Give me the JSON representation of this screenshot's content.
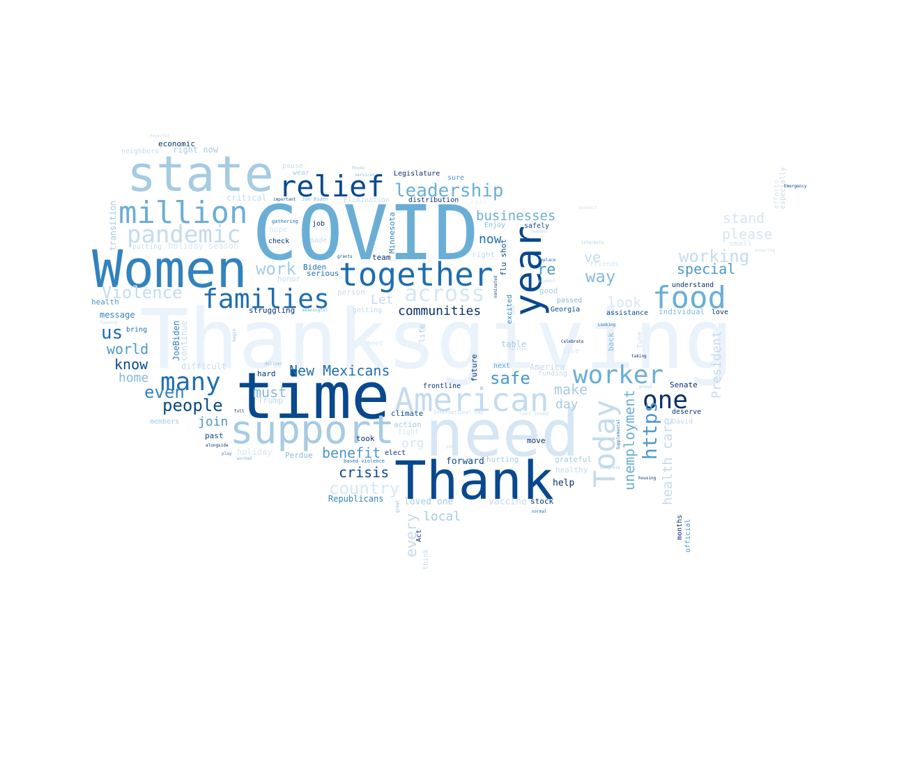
{
  "palette": {
    "c1": "#eaf2fb",
    "c2": "#d6e6f4",
    "c3": "#c4dbee",
    "c4": "#a6cbe3",
    "c5": "#86b9da",
    "c6": "#6aaed6",
    "c7": "#4a98c9",
    "c8": "#3182bd",
    "c9": "#1f6db1",
    "c10": "#0e59a2",
    "c11": "#08488e",
    "c12": "#08306b"
  },
  "words": [
    {
      "text": "Thanksgiving",
      "color": "c1"
    },
    {
      "text": "time",
      "color": "c11"
    },
    {
      "text": "need",
      "color": "c2"
    },
    {
      "text": "COVID",
      "color": "c6"
    },
    {
      "text": "Women",
      "color": "c8"
    },
    {
      "text": "Thank",
      "color": "c11"
    },
    {
      "text": "state",
      "color": "c4"
    },
    {
      "text": "together",
      "color": "c9"
    },
    {
      "text": "support",
      "color": "c4"
    },
    {
      "text": "American",
      "color": "c3"
    },
    {
      "text": "million",
      "color": "c6"
    },
    {
      "text": "year",
      "color": "c11"
    },
    {
      "text": "relief",
      "color": "c11"
    },
    {
      "text": "families",
      "color": "c9"
    },
    {
      "text": "food",
      "color": "c6"
    },
    {
      "text": "pandemic",
      "color": "c3"
    },
    {
      "text": "worker",
      "color": "c6"
    },
    {
      "text": "many",
      "color": "c9"
    },
    {
      "text": "Today",
      "color": "c3"
    },
    {
      "text": "one",
      "color": "c12"
    },
    {
      "text": "across",
      "color": "c2"
    },
    {
      "text": "leadership",
      "color": "c6"
    },
    {
      "text": "https",
      "color": "c7"
    },
    {
      "text": "safe",
      "color": "c7"
    },
    {
      "text": "Violence",
      "color": "c3"
    },
    {
      "text": "working",
      "color": "c3"
    },
    {
      "text": "country",
      "color": "c2"
    },
    {
      "text": "people",
      "color": "c11"
    },
    {
      "text": "even",
      "color": "c8"
    },
    {
      "text": "us",
      "color": "c9"
    },
    {
      "text": "crisis",
      "color": "c11"
    },
    {
      "text": "businesses",
      "color": "c6"
    },
    {
      "text": "benefit",
      "color": "c7"
    },
    {
      "text": "unemployment",
      "color": "c6"
    },
    {
      "text": "way",
      "color": "c5"
    },
    {
      "text": "New Mexicans",
      "color": "c9"
    },
    {
      "text": "communities",
      "color": "c12"
    },
    {
      "text": "health care",
      "color": "c3"
    },
    {
      "text": "every",
      "color": "c3"
    },
    {
      "text": "world",
      "color": "c7"
    },
    {
      "text": "special",
      "color": "c7"
    },
    {
      "text": "know",
      "color": "c11"
    },
    {
      "text": "work",
      "color": "c4"
    },
    {
      "text": "home",
      "color": "c5"
    },
    {
      "text": "make",
      "color": "c4"
    },
    {
      "text": "local",
      "color": "c4"
    },
    {
      "text": "please",
      "color": "c2"
    },
    {
      "text": "stand",
      "color": "c2"
    },
    {
      "text": "must",
      "color": "c5"
    },
    {
      "text": "now",
      "color": "c9"
    },
    {
      "text": "re",
      "color": "c7"
    },
    {
      "text": "look",
      "color": "c2"
    },
    {
      "text": "Let",
      "color": "c3"
    },
    {
      "text": "ve",
      "color": "c3"
    },
    {
      "text": "day",
      "color": "c4"
    },
    {
      "text": "join",
      "color": "c7"
    },
    {
      "text": "org",
      "color": "c2"
    },
    {
      "text": "President",
      "color": "c3"
    },
    {
      "text": "Minnesota",
      "color": "c8"
    },
    {
      "text": "transition",
      "color": "c4"
    },
    {
      "text": "Republicans",
      "color": "c8"
    },
    {
      "text": "loved one",
      "color": "c4"
    },
    {
      "text": "vaccine",
      "color": "c3"
    },
    {
      "text": "stock",
      "color": "c12"
    },
    {
      "text": "help",
      "color": "c12"
    },
    {
      "text": "forward",
      "color": "c11"
    },
    {
      "text": "hurting",
      "color": "c4"
    },
    {
      "text": "grateful",
      "color": "c4"
    },
    {
      "text": "healthy",
      "color": "c3"
    },
    {
      "text": "move",
      "color": "c12"
    },
    {
      "text": "frontline",
      "color": "c12"
    },
    {
      "text": "action",
      "color": "c4"
    },
    {
      "text": "climate",
      "color": "c11"
    },
    {
      "text": "took",
      "color": "c12"
    },
    {
      "text": "elect",
      "color": "c12"
    },
    {
      "text": "team",
      "color": "c12"
    },
    {
      "text": "Perdue",
      "color": "c5"
    },
    {
      "text": "past",
      "color": "c11"
    },
    {
      "text": "members",
      "color": "c4"
    },
    {
      "text": "difficult",
      "color": "c3"
    },
    {
      "text": "hard",
      "color": "c12"
    },
    {
      "text": "Trump",
      "color": "c3"
    },
    {
      "text": "JoeBiden",
      "color": "c8"
    },
    {
      "text": "continue",
      "color": "c3"
    },
    {
      "text": "message",
      "color": "c8"
    },
    {
      "text": "bring",
      "color": "c9"
    },
    {
      "text": "health",
      "color": "c7"
    },
    {
      "text": "struggling",
      "color": "c12"
    },
    {
      "text": "getting",
      "color": "c3"
    },
    {
      "text": "person",
      "color": "c3"
    },
    {
      "text": "honor",
      "color": "c3"
    },
    {
      "text": "serious",
      "color": "c9"
    },
    {
      "text": "Biden",
      "color": "c9"
    },
    {
      "text": "check",
      "color": "c12"
    },
    {
      "text": "hope",
      "color": "c2"
    },
    {
      "text": "putting",
      "color": "c3"
    },
    {
      "text": "holiday season",
      "color": "c2"
    },
    {
      "text": "critical",
      "color": "c3"
    },
    {
      "text": "made",
      "color": "c3"
    },
    {
      "text": "job",
      "color": "c12"
    },
    {
      "text": "gathering",
      "color": "c9"
    },
    {
      "text": "economic",
      "color": "c12"
    },
    {
      "text": "neighbors",
      "color": "c3"
    },
    {
      "text": "right now",
      "color": "c4"
    },
    {
      "text": "Powerful",
      "color": "c3"
    },
    {
      "text": "pause",
      "color": "c3"
    },
    {
      "text": "wear",
      "color": "c4"
    },
    {
      "text": "Legislature",
      "color": "c12"
    },
    {
      "text": "sure",
      "color": "c7"
    },
    {
      "text": "Rhode",
      "color": "c4"
    },
    {
      "text": "services",
      "color": "c5"
    },
    {
      "text": "distribution",
      "color": "c12"
    },
    {
      "text": "Elimination",
      "color": "c3"
    },
    {
      "text": "Joe Biden",
      "color": "c5"
    },
    {
      "text": "important",
      "color": "c11"
    },
    {
      "text": "real",
      "color": "c1"
    },
    {
      "text": "Enjoy",
      "color": "c5"
    },
    {
      "text": "safely",
      "color": "c11"
    },
    {
      "text": "right",
      "color": "c3"
    },
    {
      "text": "good",
      "color": "c4"
    },
    {
      "text": "passed",
      "color": "c5"
    },
    {
      "text": "Georgia",
      "color": "c11"
    },
    {
      "text": "assistance",
      "color": "c11"
    },
    {
      "text": "individual",
      "color": "c5"
    },
    {
      "text": "love",
      "color": "c12"
    },
    {
      "text": "understand",
      "color": "c12"
    },
    {
      "text": "small",
      "color": "c2"
    },
    {
      "text": "efforts",
      "color": "c2"
    },
    {
      "text": "especially",
      "color": "c3"
    },
    {
      "text": "Emergency",
      "color": "c11"
    },
    {
      "text": "protect",
      "color": "c3"
    },
    {
      "text": "interests",
      "color": "c4"
    },
    {
      "text": "ensuring",
      "color": "c3"
    },
    {
      "text": "friends",
      "color": "c2"
    },
    {
      "text": "replace",
      "color": "c9"
    },
    {
      "text": "payment",
      "color": "c3"
    },
    {
      "text": "needed",
      "color": "c3"
    },
    {
      "text": "flu shot",
      "color": "c11"
    },
    {
      "text": "excited",
      "color": "c8"
    },
    {
      "text": "nominated",
      "color": "c11"
    },
    {
      "text": "life",
      "color": "c4"
    },
    {
      "text": "future",
      "color": "c12"
    },
    {
      "text": "table",
      "color": "c4"
    },
    {
      "text": "next",
      "color": "c6"
    },
    {
      "text": "America",
      "color": "c3"
    },
    {
      "text": "funding",
      "color": "c3"
    },
    {
      "text": "Celebrate",
      "color": "c12"
    },
    {
      "text": "Looking",
      "color": "c9"
    },
    {
      "text": "back",
      "color": "c5"
    },
    {
      "text": "Tune",
      "color": "c3"
    },
    {
      "text": "taking",
      "color": "c12"
    },
    {
      "text": "Senate",
      "color": "c12"
    },
    {
      "text": "deserve",
      "color": "c12"
    },
    {
      "text": "David",
      "color": "c3"
    },
    {
      "text": "proud",
      "color": "c4"
    },
    {
      "text": "Supplemental",
      "color": "c9"
    },
    {
      "text": "Congress",
      "color": "c4"
    },
    {
      "text": "housing",
      "color": "c12"
    },
    {
      "text": "months",
      "color": "c12"
    },
    {
      "text": "official",
      "color": "c7"
    },
    {
      "text": "normal",
      "color": "c9"
    },
    {
      "text": "International Day",
      "color": "c3"
    },
    {
      "text": "lost loved",
      "color": "c3"
    },
    {
      "text": "meet",
      "color": "c2"
    },
    {
      "text": "deliver",
      "color": "c5"
    },
    {
      "text": "based violence",
      "color": "c9"
    },
    {
      "text": "grants",
      "color": "c11"
    },
    {
      "text": "meaningful",
      "color": "c6"
    },
    {
      "text": "alongside",
      "color": "c12"
    },
    {
      "text": "play",
      "color": "c8"
    },
    {
      "text": "worked",
      "color": "c5"
    },
    {
      "text": "full",
      "color": "c12"
    },
    {
      "text": "begin",
      "color": "c5"
    },
    {
      "text": "funding",
      "color": "c3"
    },
    {
      "text": "put",
      "color": "c3"
    },
    {
      "text": "great",
      "color": "c5"
    },
    {
      "text": "Act",
      "color": "c12"
    },
    {
      "text": "think",
      "color": "c3"
    },
    {
      "text": "live",
      "color": "c2"
    },
    {
      "text": "failure",
      "color": "c3"
    },
    {
      "text": "fight",
      "color": "c2"
    },
    {
      "text": "holiday",
      "color": "c2"
    }
  ]
}
